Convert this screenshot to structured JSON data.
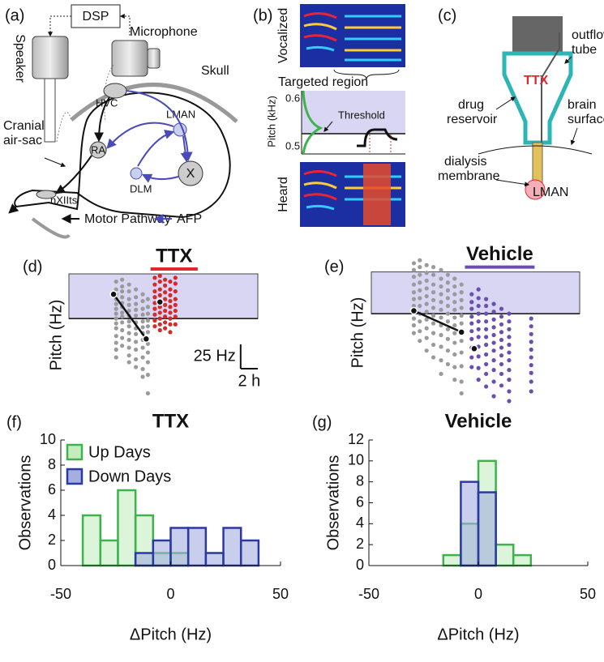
{
  "diagrams": {
    "a": {
      "label": "(a)",
      "dsp": "DSP",
      "speaker": "Speaker",
      "microphone": "Microphone",
      "skull": "Skull",
      "air_sac": [
        "Cranial",
        "air-sac"
      ],
      "hvc": "HVC",
      "ra": "RA",
      "lman": "LMAN",
      "x": "X",
      "dlm": "DLM",
      "nxiits": "nXIIts",
      "legend": [
        "Motor Pathway",
        "AFP"
      ]
    },
    "b": {
      "label": "(b)",
      "vocalized": "Vocalized",
      "targeted": "Targeted region",
      "ylabel": "Pitch (kHz)",
      "yticks": [
        0.6,
        0.5
      ],
      "threshold": "Threshold",
      "heard": "Heard"
    },
    "c": {
      "label": "(c)",
      "outflow": [
        "outflow",
        "tube"
      ],
      "reservoir": [
        "drug",
        "reservoir"
      ],
      "ttx": "TTX",
      "surface": [
        "brain",
        "surface"
      ],
      "membrane": [
        "dialysis",
        "membrane"
      ],
      "lman": "LMAN"
    }
  },
  "chart_data": [
    {
      "type": "scatter",
      "panel_label": "(d)",
      "ylabel": "Pitch (Hz)",
      "xlim": [
        0,
        22
      ],
      "ylim": [
        -80,
        46
      ],
      "targeted_region": [
        0,
        46
      ],
      "region_color": "#d8d6f2",
      "treatment": {
        "label": "TTX",
        "color": "#e3262b",
        "x": [
          9.5,
          15
        ]
      },
      "series": [
        {
          "color": "#9a9a9a",
          "x": 5.5,
          "values": [
            38,
            30,
            25,
            20,
            15,
            10,
            5,
            0,
            -5,
            -10,
            -18,
            -25,
            -32,
            -40
          ]
        },
        {
          "color": "#9a9a9a",
          "x": 6.2,
          "values": [
            40,
            33,
            28,
            22,
            16,
            12,
            6,
            2,
            -4,
            -12,
            -20,
            -28
          ]
        },
        {
          "color": "#9a9a9a",
          "x": 7.0,
          "values": [
            35,
            28,
            20,
            14,
            8,
            3,
            -3,
            -8,
            -15,
            -22,
            -30,
            -38,
            -45
          ]
        },
        {
          "color": "#9a9a9a",
          "x": 7.8,
          "values": [
            30,
            22,
            15,
            9,
            3,
            -4,
            -10,
            -16,
            -24,
            -32,
            -42,
            -50
          ]
        },
        {
          "color": "#9a9a9a",
          "x": 8.6,
          "values": [
            25,
            18,
            10,
            4,
            -3,
            -9,
            -15,
            -22,
            -30,
            -40,
            -52,
            -60
          ]
        },
        {
          "color": "#9a9a9a",
          "x": 9.2,
          "values": [
            20,
            12,
            5,
            -2,
            -8,
            -14,
            -20,
            -26,
            -35,
            -45,
            -58,
            -77
          ]
        },
        {
          "color": "#d42a2a",
          "x": 10.0,
          "values": [
            42,
            35,
            28,
            22,
            16,
            10,
            4,
            -2,
            -8
          ]
        },
        {
          "color": "#d42a2a",
          "x": 10.6,
          "values": [
            44,
            38,
            30,
            24,
            18,
            12,
            6,
            0,
            -6,
            -12
          ]
        },
        {
          "color": "#d42a2a",
          "x": 11.2,
          "values": [
            40,
            34,
            27,
            20,
            14,
            8,
            2,
            -4,
            -10
          ]
        },
        {
          "color": "#d42a2a",
          "x": 11.8,
          "values": [
            38,
            30,
            24,
            18,
            12,
            6,
            0,
            -6,
            -14
          ]
        },
        {
          "color": "#d42a2a",
          "x": 12.4,
          "values": [
            42,
            36,
            28,
            20,
            14,
            8,
            2,
            -6
          ]
        }
      ],
      "trend": {
        "x": [
          5.2,
          9.0
        ],
        "values": [
          25,
          -21
        ]
      },
      "marker": {
        "x": [
          10.6
        ],
        "values": [
          17
        ]
      },
      "scalebar": {
        "y": 25,
        "y_label": "25 Hz",
        "x": 2,
        "x_label": "2 h"
      }
    },
    {
      "type": "scatter",
      "panel_label": "(e)",
      "ylabel": "Pitch (Hz)",
      "xlim": [
        0,
        24.5
      ],
      "ylim": [
        -95,
        56
      ],
      "targeted_region": [
        0,
        43
      ],
      "region_color": "#d8d6f2",
      "treatment": {
        "label": "Vehicle",
        "color": "#6a4fb0",
        "x": [
          11,
          19.2
        ]
      },
      "series": [
        {
          "color": "#9a9a9a",
          "x": 5.0,
          "values": [
            52,
            45,
            38,
            30,
            22,
            15,
            8,
            2,
            -5,
            -12,
            -20
          ]
        },
        {
          "color": "#9a9a9a",
          "x": 5.7,
          "values": [
            55,
            48,
            40,
            32,
            24,
            16,
            8,
            0,
            -8,
            -18,
            -28
          ]
        },
        {
          "color": "#9a9a9a",
          "x": 6.5,
          "values": [
            50,
            42,
            34,
            26,
            18,
            10,
            2,
            -6,
            -15,
            -25,
            -38
          ]
        },
        {
          "color": "#9a9a9a",
          "x": 7.3,
          "values": [
            48,
            40,
            30,
            22,
            14,
            6,
            -2,
            -10,
            -20,
            -32,
            -45
          ]
        },
        {
          "color": "#9a9a9a",
          "x": 8.2,
          "values": [
            45,
            36,
            28,
            20,
            12,
            4,
            -4,
            -12,
            -22,
            -34,
            -48,
            -62
          ]
        },
        {
          "color": "#9a9a9a",
          "x": 9.0,
          "values": [
            40,
            32,
            24,
            16,
            8,
            0,
            -8,
            -16,
            -26,
            -38,
            -52
          ]
        },
        {
          "color": "#9a9a9a",
          "x": 9.8,
          "values": [
            36,
            28,
            20,
            12,
            4,
            -4,
            -12,
            -20,
            -30,
            -42,
            -55,
            -68
          ]
        },
        {
          "color": "#9a9a9a",
          "x": 10.6,
          "values": [
            30,
            22,
            14,
            6,
            -2,
            -10,
            -18,
            -28,
            -40,
            -54,
            -70,
            -82
          ]
        },
        {
          "color": "#6a4fb0",
          "x": 11.8,
          "values": [
            20,
            12,
            5,
            -3,
            -10,
            -18,
            -26,
            -35,
            -45,
            -55
          ]
        },
        {
          "color": "#6a4fb0",
          "x": 12.6,
          "values": [
            25,
            16,
            8,
            0,
            -8,
            -16,
            -24,
            -34,
            -44,
            -56,
            -68
          ]
        },
        {
          "color": "#6a4fb0",
          "x": 13.5,
          "values": [
            15,
            8,
            0,
            -8,
            -16,
            -24,
            -32,
            -42,
            -52,
            -62,
            -75
          ]
        },
        {
          "color": "#6a4fb0",
          "x": 14.4,
          "values": [
            10,
            2,
            -6,
            -14,
            -22,
            -30,
            -38,
            -48,
            -58,
            -70,
            -85
          ]
        },
        {
          "color": "#6a4fb0",
          "x": 15.3,
          "values": [
            5,
            -3,
            -11,
            -19,
            -27,
            -35,
            -43,
            -52,
            -62,
            -74
          ]
        },
        {
          "color": "#6a4fb0",
          "x": 16.2,
          "values": [
            0,
            -8,
            -16,
            -24,
            -32,
            -40,
            -48,
            -58,
            -68,
            -80,
            -90
          ]
        },
        {
          "color": "#6a4fb0",
          "x": 18.8,
          "values": [
            -5,
            -13,
            -21,
            -29,
            -37,
            -45,
            -53,
            -61,
            -70,
            -80
          ]
        }
      ],
      "trend": {
        "x": [
          5.0,
          10.6
        ],
        "values": [
          3,
          -19
        ]
      },
      "marker": {
        "x": [
          12.1
        ],
        "values": [
          -36
        ]
      }
    },
    {
      "type": "histogram",
      "panel_label": "(f)",
      "title": "TTX",
      "xlabel": "ΔPitch (Hz)",
      "ylabel": "Observations",
      "xlim": [
        -50,
        50
      ],
      "xticks": [
        -50,
        0,
        50
      ],
      "ylim": [
        0,
        10
      ],
      "yticks": [
        0,
        2,
        4,
        6,
        8,
        10
      ],
      "legend": "upper left",
      "series": [
        {
          "name": "Up Days",
          "color": "#3cb44b",
          "fill": "#c4ecbf",
          "bins": [
            -40,
            -32,
            -24,
            -16,
            -8,
            0,
            8,
            16,
            24,
            32,
            40
          ],
          "values": [
            4,
            2,
            6,
            4,
            1,
            1,
            0,
            0,
            0,
            0
          ]
        },
        {
          "name": "Down Days",
          "color": "#2b3aa0",
          "fill": "#a4aee0",
          "bins": [
            -40,
            -32,
            -24,
            -16,
            -8,
            0,
            8,
            16,
            24,
            32,
            40
          ],
          "values": [
            0,
            0,
            0,
            1,
            2,
            3,
            3,
            1,
            3,
            2
          ]
        }
      ]
    },
    {
      "type": "histogram",
      "panel_label": "(g)",
      "title": "Vehicle",
      "xlabel": "ΔPitch (Hz)",
      "ylabel": "Observations",
      "xlim": [
        -50,
        50
      ],
      "xticks": [
        -50,
        0,
        50
      ],
      "ylim": [
        0,
        12
      ],
      "yticks": [
        0,
        2,
        4,
        6,
        8,
        10,
        12
      ],
      "series": [
        {
          "color": "#3cb44b",
          "fill": "#c4ecbf",
          "bins": [
            -40,
            -32,
            -24,
            -16,
            -8,
            0,
            8,
            16,
            24,
            32,
            40
          ],
          "values": [
            0,
            0,
            0,
            1,
            4,
            10,
            2,
            1,
            0,
            0
          ]
        },
        {
          "color": "#2b3aa0",
          "fill": "#a4aee0",
          "bins": [
            -40,
            -32,
            -24,
            -16,
            -8,
            0,
            8,
            16,
            24,
            32,
            40
          ],
          "values": [
            0,
            0,
            0,
            0,
            8,
            7,
            0,
            0,
            0,
            0
          ]
        }
      ]
    }
  ]
}
